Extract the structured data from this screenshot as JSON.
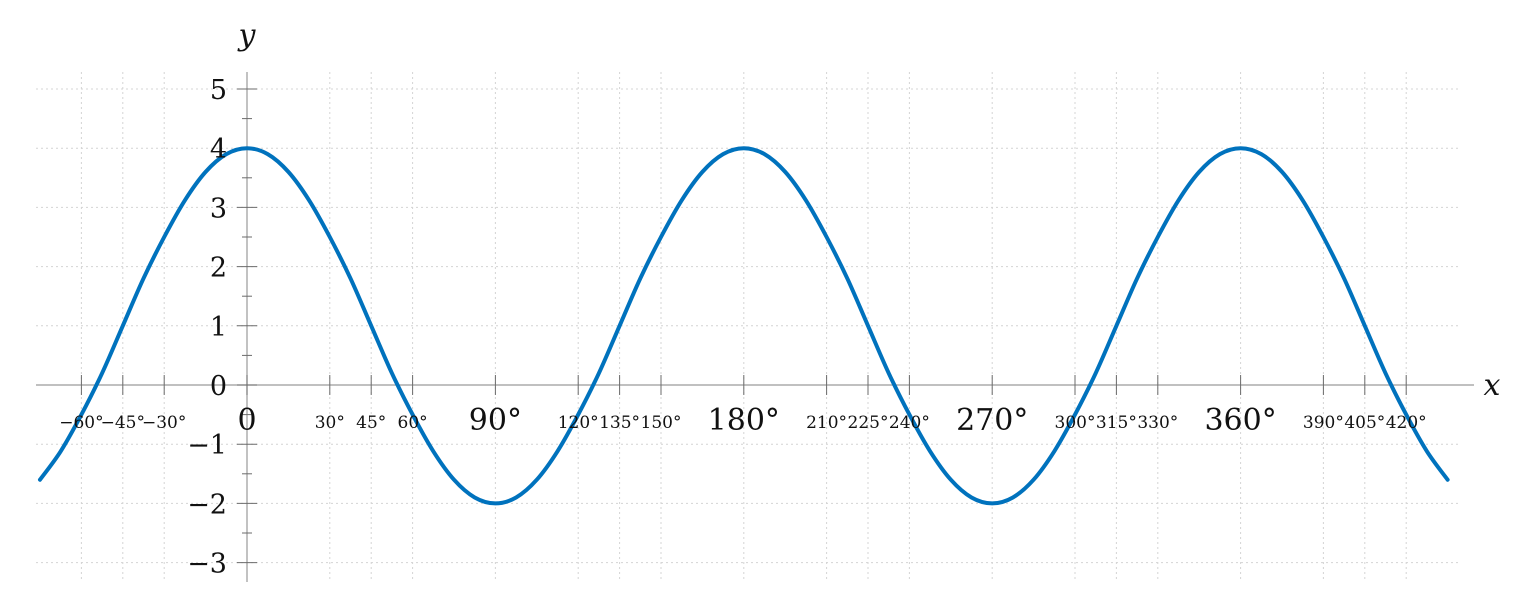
{
  "chart_data": {
    "type": "line",
    "title": "",
    "xlabel": "x",
    "ylabel": "y",
    "xlim": [
      -80,
      435
    ],
    "ylim": [
      -3.3,
      5.3
    ],
    "grid": true,
    "line_color": "#0072bd",
    "y_ticks": [
      {
        "value": 5,
        "label": "5"
      },
      {
        "value": 4,
        "label": "4"
      },
      {
        "value": 3,
        "label": "3"
      },
      {
        "value": 2,
        "label": "2"
      },
      {
        "value": 1,
        "label": "1"
      },
      {
        "value": 0,
        "label": "0"
      },
      {
        "value": -1,
        "label": "−1"
      },
      {
        "value": -2,
        "label": "−2"
      },
      {
        "value": -3,
        "label": "−3"
      }
    ],
    "x_ticks": [
      {
        "value": -60,
        "label": "−60°",
        "major": false
      },
      {
        "value": -45,
        "label": "−45°",
        "major": false
      },
      {
        "value": -30,
        "label": "−30°",
        "major": false
      },
      {
        "value": 0,
        "label": "0",
        "major": true
      },
      {
        "value": 30,
        "label": "30°",
        "major": false
      },
      {
        "value": 45,
        "label": "45°",
        "major": false
      },
      {
        "value": 60,
        "label": "60°",
        "major": false
      },
      {
        "value": 90,
        "label": "90°",
        "major": true
      },
      {
        "value": 120,
        "label": "120°",
        "major": false
      },
      {
        "value": 135,
        "label": "135°",
        "major": false
      },
      {
        "value": 150,
        "label": "150°",
        "major": false
      },
      {
        "value": 180,
        "label": "180°",
        "major": true
      },
      {
        "value": 210,
        "label": "210°",
        "major": false
      },
      {
        "value": 225,
        "label": "225°",
        "major": false
      },
      {
        "value": 240,
        "label": "240°",
        "major": false
      },
      {
        "value": 270,
        "label": "270°",
        "major": true
      },
      {
        "value": 300,
        "label": "300°",
        "major": false
      },
      {
        "value": 315,
        "label": "315°",
        "major": false
      },
      {
        "value": 330,
        "label": "330°",
        "major": false
      },
      {
        "value": 360,
        "label": "360°",
        "major": true
      },
      {
        "value": 390,
        "label": "390°",
        "major": false
      },
      {
        "value": 405,
        "label": "405°",
        "major": false
      },
      {
        "value": 420,
        "label": "420°",
        "major": false
      }
    ],
    "series": [
      {
        "x": [
          -75,
          -67.5,
          -60,
          -52.5,
          -45,
          -37.5,
          -30,
          -22.5,
          -15,
          -7.5,
          0,
          7.5,
          15,
          22.5,
          30,
          37.5,
          45,
          52.5,
          60,
          67.5,
          75,
          82.5,
          90,
          97.5,
          105,
          112.5,
          120,
          127.5,
          135,
          142.5,
          150,
          157.5,
          165,
          172.5,
          180,
          187.5,
          195,
          202.5,
          210,
          217.5,
          225,
          232.5,
          240,
          247.5,
          255,
          262.5,
          270,
          277.5,
          285,
          292.5,
          300,
          307.5,
          315,
          322.5,
          330,
          337.5,
          345,
          352.5,
          360,
          367.5,
          375,
          382.5,
          390,
          397.5,
          405,
          412.5,
          420,
          427.5,
          435
        ],
        "y": [
          -1.6,
          -1.12,
          -0.5,
          0.2,
          1.0,
          1.8,
          2.5,
          3.12,
          3.6,
          3.9,
          4.0,
          3.9,
          3.6,
          3.12,
          2.5,
          1.8,
          1.0,
          0.2,
          -0.5,
          -1.12,
          -1.6,
          -1.9,
          -2.0,
          -1.9,
          -1.6,
          -1.12,
          -0.5,
          0.2,
          1.0,
          1.8,
          2.5,
          3.12,
          3.6,
          3.9,
          4.0,
          3.9,
          3.6,
          3.12,
          2.5,
          1.8,
          1.0,
          0.2,
          -0.5,
          -1.12,
          -1.6,
          -1.9,
          -2.0,
          -1.9,
          -1.6,
          -1.12,
          -0.5,
          0.2,
          1.0,
          1.8,
          2.5,
          3.12,
          3.6,
          3.9,
          4.0,
          3.9,
          3.6,
          3.12,
          2.5,
          1.8,
          1.0,
          0.2,
          -0.5,
          -1.12,
          -1.6
        ]
      }
    ]
  }
}
